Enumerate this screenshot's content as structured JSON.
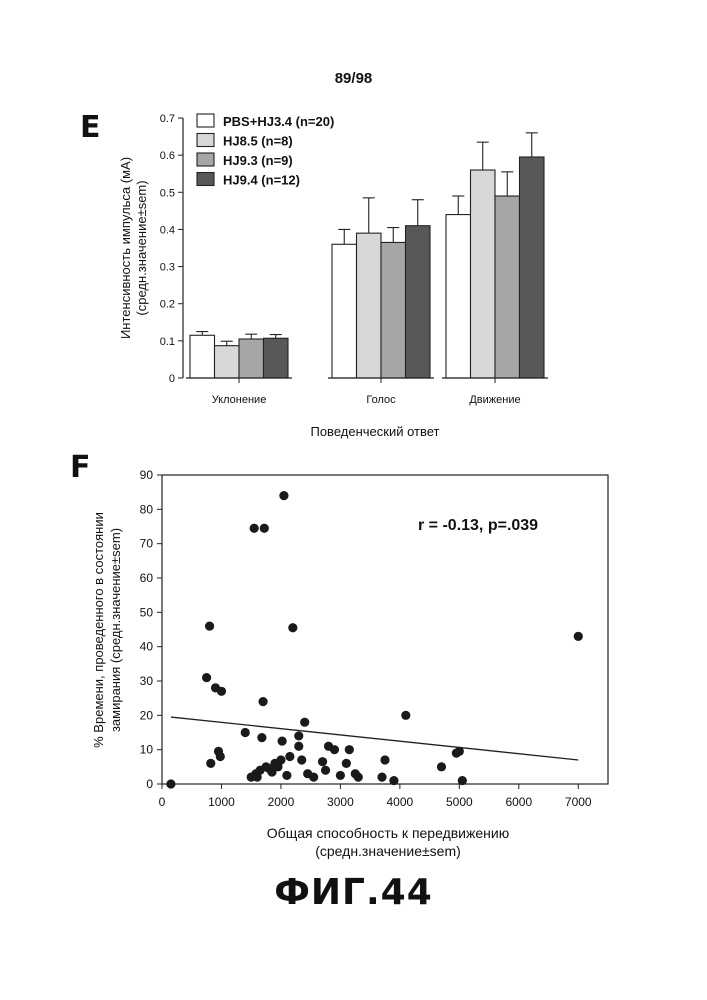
{
  "page_number": "89/98",
  "figure_caption": "ФИГ.44",
  "chart_data": [
    {
      "panel": "E",
      "type": "bar",
      "categories": [
        "Уклонение",
        "Голос",
        "Движение"
      ],
      "series": [
        {
          "name": "PBS+HJ3.4 (n=20)",
          "color": "#ffffff",
          "values": [
            0.115,
            0.36,
            0.44
          ],
          "errors": [
            0.01,
            0.04,
            0.05
          ]
        },
        {
          "name": "HJ8.5 (n=8)",
          "color": "#d8d8d8",
          "values": [
            0.087,
            0.39,
            0.56
          ],
          "errors": [
            0.012,
            0.095,
            0.075
          ]
        },
        {
          "name": "HJ9.3 (n=9)",
          "color": "#a6a6a6",
          "values": [
            0.105,
            0.365,
            0.49
          ],
          "errors": [
            0.013,
            0.04,
            0.065
          ]
        },
        {
          "name": "HJ9.4 (n=12)",
          "color": "#585858",
          "values": [
            0.107,
            0.41,
            0.595
          ],
          "errors": [
            0.01,
            0.07,
            0.065
          ]
        }
      ],
      "ylabel": "Интенсивность импульса (мА)\n(средн.значение±sem)",
      "xlabel": "Поведенческий ответ",
      "ylim": [
        0,
        0.7
      ],
      "yticks": [
        "0",
        "0.1",
        "0.2",
        "0.3",
        "0.4",
        "0.5",
        "0.6",
        "0.7"
      ],
      "legend_position": "top-left"
    },
    {
      "panel": "F",
      "type": "scatter",
      "annotation": "r = -0.13, p=.039",
      "ylabel": "% Времени, проведенного в состоянии\nзамирания  (средн.значение±sem)",
      "xlabel": "Общая способность к передвижению\n(средн.значение±sem)",
      "xlim": [
        0,
        7500
      ],
      "ylim": [
        0,
        90
      ],
      "xticks": [
        "0",
        "1000",
        "2000",
        "3000",
        "4000",
        "5000",
        "6000",
        "7000"
      ],
      "yticks": [
        "0",
        "10",
        "20",
        "30",
        "40",
        "50",
        "60",
        "70",
        "80",
        "90"
      ],
      "points": [
        [
          150,
          0
        ],
        [
          750,
          31
        ],
        [
          800,
          46
        ],
        [
          820,
          6
        ],
        [
          900,
          28
        ],
        [
          950,
          9.5
        ],
        [
          980,
          8
        ],
        [
          1000,
          27
        ],
        [
          1400,
          15
        ],
        [
          1500,
          2
        ],
        [
          1550,
          74.5
        ],
        [
          1580,
          3
        ],
        [
          1600,
          2
        ],
        [
          1650,
          4
        ],
        [
          1680,
          13.5
        ],
        [
          1700,
          24
        ],
        [
          1720,
          74.5
        ],
        [
          1750,
          5
        ],
        [
          1800,
          4.5
        ],
        [
          1850,
          3.5
        ],
        [
          1900,
          6
        ],
        [
          1950,
          5
        ],
        [
          2000,
          7
        ],
        [
          2020,
          12.5
        ],
        [
          2050,
          84
        ],
        [
          2100,
          2.5
        ],
        [
          2150,
          8
        ],
        [
          2200,
          45.5
        ],
        [
          2300,
          11
        ],
        [
          2300,
          14
        ],
        [
          2350,
          7
        ],
        [
          2400,
          18
        ],
        [
          2450,
          3
        ],
        [
          2550,
          2
        ],
        [
          2700,
          6.5
        ],
        [
          2750,
          4
        ],
        [
          2800,
          11
        ],
        [
          2900,
          10
        ],
        [
          3000,
          2.5
        ],
        [
          3100,
          6
        ],
        [
          3150,
          10
        ],
        [
          3250,
          3
        ],
        [
          3300,
          2
        ],
        [
          3700,
          2
        ],
        [
          3750,
          7
        ],
        [
          3900,
          1
        ],
        [
          4100,
          20
        ],
        [
          4700,
          5
        ],
        [
          4950,
          9
        ],
        [
          5000,
          9.5
        ],
        [
          5050,
          1
        ],
        [
          7000,
          43
        ]
      ],
      "trendline": {
        "x": [
          150,
          7000
        ],
        "y": [
          19.5,
          7
        ]
      }
    }
  ]
}
